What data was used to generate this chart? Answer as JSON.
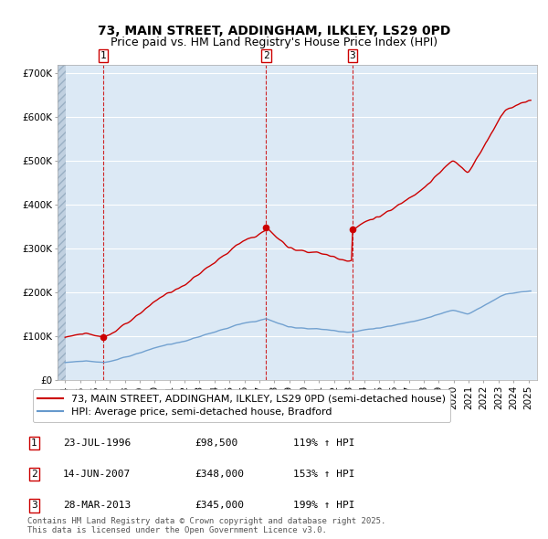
{
  "title": "73, MAIN STREET, ADDINGHAM, ILKLEY, LS29 0PD",
  "subtitle": "Price paid vs. HM Land Registry's House Price Index (HPI)",
  "background_color": "#ffffff",
  "plot_bg_color": "#dce9f5",
  "grid_color": "#ffffff",
  "sale_dates": [
    "1996-07-23",
    "2007-06-14",
    "2013-03-28"
  ],
  "sale_prices": [
    98500,
    348000,
    345000
  ],
  "sale_labels": [
    "1",
    "2",
    "3"
  ],
  "sale_hpi_pct": [
    "119% ↑ HPI",
    "153% ↑ HPI",
    "199% ↑ HPI"
  ],
  "sale_dates_display": [
    "23-JUL-1996",
    "14-JUN-2007",
    "28-MAR-2013"
  ],
  "sale_prices_display": [
    "£98,500",
    "£348,000",
    "£345,000"
  ],
  "legend_label_red": "73, MAIN STREET, ADDINGHAM, ILKLEY, LS29 0PD (semi-detached house)",
  "legend_label_blue": "HPI: Average price, semi-detached house, Bradford",
  "footnote": "Contains HM Land Registry data © Crown copyright and database right 2025.\nThis data is licensed under the Open Government Licence v3.0.",
  "ylim": [
    0,
    720000
  ],
  "yticks": [
    0,
    100000,
    200000,
    300000,
    400000,
    500000,
    600000,
    700000
  ],
  "ytick_labels": [
    "£0",
    "£100K",
    "£200K",
    "£300K",
    "£400K",
    "£500K",
    "£600K",
    "£700K"
  ],
  "red_line_color": "#cc0000",
  "blue_line_color": "#6699cc",
  "marker_color": "#cc0000",
  "vline_color": "#cc0000",
  "title_fontsize": 10,
  "subtitle_fontsize": 9,
  "tick_fontsize": 7.5,
  "legend_fontsize": 8,
  "table_fontsize": 8,
  "footnote_fontsize": 6.5
}
